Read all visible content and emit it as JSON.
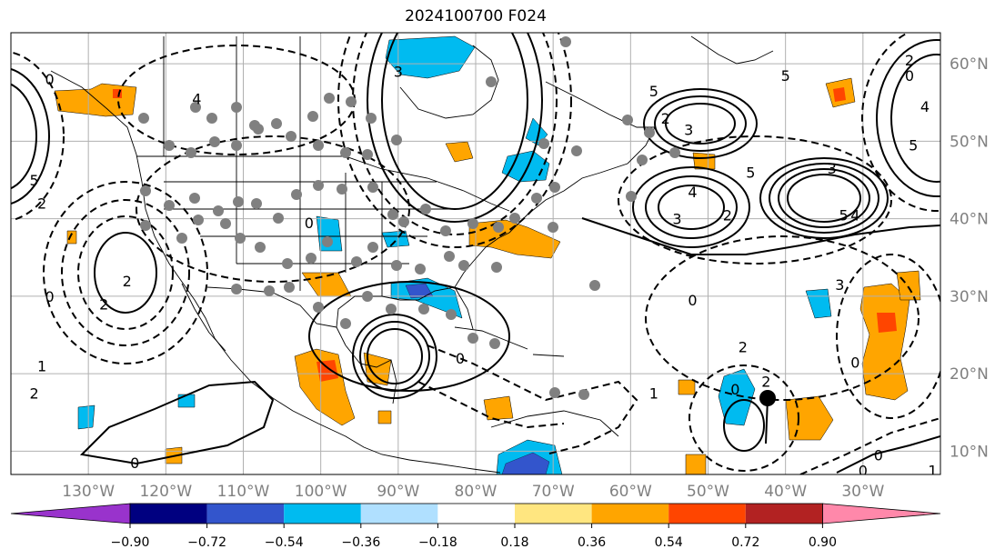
{
  "title": "2024100700 F024",
  "map": {
    "lon_range": [
      -140,
      -20
    ],
    "lat_range": [
      7,
      64
    ],
    "lon_ticks": [
      {
        "value": -130,
        "label": "130°W"
      },
      {
        "value": -120,
        "label": "120°W"
      },
      {
        "value": -110,
        "label": "110°W"
      },
      {
        "value": -100,
        "label": "100°W"
      },
      {
        "value": -90,
        "label": "90°W"
      },
      {
        "value": -80,
        "label": "80°W"
      },
      {
        "value": -70,
        "label": "70°W"
      },
      {
        "value": -60,
        "label": "60°W"
      },
      {
        "value": -50,
        "label": "50°W"
      },
      {
        "value": -40,
        "label": "40°W"
      },
      {
        "value": -30,
        "label": "30°W"
      }
    ],
    "lat_ticks": [
      {
        "value": 10,
        "label": "10°N"
      },
      {
        "value": 20,
        "label": "20°N"
      },
      {
        "value": 30,
        "label": "30°N"
      },
      {
        "value": 40,
        "label": "40°N"
      },
      {
        "value": 50,
        "label": "50°N"
      },
      {
        "value": 60,
        "label": "60°N"
      }
    ],
    "contour_labels": [
      {
        "text": "0",
        "lon": -135,
        "lat": 58
      },
      {
        "text": "4",
        "lon": -116,
        "lat": 55.5
      },
      {
        "text": "5",
        "lon": -137,
        "lat": 45
      },
      {
        "text": "2",
        "lon": -136,
        "lat": 42
      },
      {
        "text": "2",
        "lon": -128,
        "lat": 29
      },
      {
        "text": "2",
        "lon": -125,
        "lat": 32
      },
      {
        "text": "0",
        "lon": -135,
        "lat": 30
      },
      {
        "text": "1",
        "lon": -136,
        "lat": 21
      },
      {
        "text": "2",
        "lon": -137,
        "lat": 17.5
      },
      {
        "text": "0",
        "lon": -124,
        "lat": 8.5
      },
      {
        "text": "0",
        "lon": -101.5,
        "lat": 39.5
      },
      {
        "text": "3",
        "lon": -90,
        "lat": 59
      },
      {
        "text": "5",
        "lon": -57,
        "lat": 56.5
      },
      {
        "text": "3",
        "lon": -52.5,
        "lat": 51.5
      },
      {
        "text": "2",
        "lon": -55.5,
        "lat": 53
      },
      {
        "text": "4",
        "lon": -52,
        "lat": 43.5
      },
      {
        "text": "3",
        "lon": -54,
        "lat": 40
      },
      {
        "text": "2",
        "lon": -47.5,
        "lat": 40.5
      },
      {
        "text": "5",
        "lon": -32.5,
        "lat": 40.5
      },
      {
        "text": "4",
        "lon": -31,
        "lat": 40.5
      },
      {
        "text": "3",
        "lon": -34,
        "lat": 46.5
      },
      {
        "text": "5",
        "lon": -40,
        "lat": 58.5
      },
      {
        "text": "5",
        "lon": -23.5,
        "lat": 49.5
      },
      {
        "text": "4",
        "lon": -22,
        "lat": 54.5
      },
      {
        "text": "2",
        "lon": -24,
        "lat": 60.5
      },
      {
        "text": "0",
        "lon": -24,
        "lat": 58.5
      },
      {
        "text": "0",
        "lon": -52,
        "lat": 29.5
      },
      {
        "text": "2",
        "lon": -45.5,
        "lat": 23.5
      },
      {
        "text": "3",
        "lon": -33,
        "lat": 31.5
      },
      {
        "text": "0",
        "lon": -31,
        "lat": 21.5
      },
      {
        "text": "1",
        "lon": -57,
        "lat": 17.5
      },
      {
        "text": "0",
        "lon": -46.5,
        "lat": 18
      },
      {
        "text": "2",
        "lon": -42.5,
        "lat": 19
      },
      {
        "text": "0",
        "lon": -28,
        "lat": 9.5
      },
      {
        "text": "0",
        "lon": -30,
        "lat": 7.5
      },
      {
        "text": "1",
        "lon": -21,
        "lat": 7.5
      },
      {
        "text": "0",
        "lon": -82,
        "lat": 22
      },
      {
        "text": "5",
        "lon": -44.5,
        "lat": 46
      }
    ]
  },
  "colorbar": {
    "ticks": [
      "−0.90",
      "−0.72",
      "−0.54",
      "−0.36",
      "−0.18",
      "0.18",
      "0.36",
      "0.54",
      "0.72",
      "0.90"
    ],
    "colors": [
      "#9933cc",
      "#000080",
      "#3355cc",
      "#00bbf0",
      "#b0e0ff",
      "#ffffff",
      "#ffe680",
      "#ffa500",
      "#ff4500",
      "#b22222",
      "#ff88aa"
    ]
  },
  "colors": {
    "positive_fill": "#ffa500",
    "strong_positive_fill": "#ff4500",
    "negative_fill": "#00bbf0",
    "strong_negative_fill": "#3355cc",
    "marker_gray": "#808080",
    "marker_black": "#000000"
  }
}
